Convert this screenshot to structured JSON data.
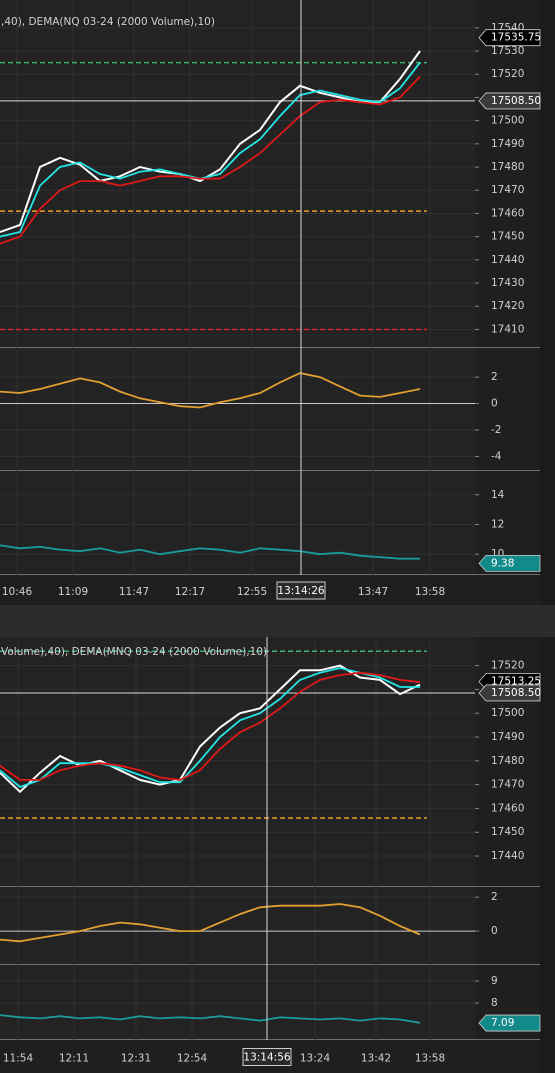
{
  "chart_data": [
    {
      "type": "line",
      "title": ",40), DEMA(NQ 03-24 (2000 Volume),10)",
      "x": [
        0,
        1,
        2,
        3,
        4,
        5,
        6,
        7,
        8,
        9,
        10,
        11,
        12,
        13,
        14,
        15,
        16,
        17,
        18,
        19,
        20,
        21
      ],
      "xlim": [
        0,
        23.75
      ],
      "xticks": [
        {
          "value": 0.85,
          "label": "10:46"
        },
        {
          "value": 3.65,
          "label": "11:09"
        },
        {
          "value": 6.7,
          "label": "11:47"
        },
        {
          "value": 9.5,
          "label": "12:17"
        },
        {
          "value": 12.6,
          "label": "12:55"
        },
        {
          "value": 18.65,
          "label": "13:47"
        },
        {
          "value": 21.5,
          "label": "13:58"
        }
      ],
      "crosshair": {
        "value": 15.05,
        "label": "13:14:26"
      },
      "panels": [
        {
          "ylim": [
            17402,
            17552
          ],
          "yticks": [
            17410,
            17420,
            17430,
            17440,
            17450,
            17460,
            17470,
            17480,
            17490,
            17500,
            17510,
            17520,
            17530,
            17540
          ],
          "series": [
            {
              "color": "#ffffff",
              "values": [
                17452,
                17455,
                17480,
                17484,
                17481,
                17474,
                17476,
                17480,
                17478,
                17477,
                17474,
                17479,
                17490,
                17496,
                17508,
                17515,
                17512,
                17510,
                17508,
                17508,
                17518,
                17530
              ]
            },
            {
              "color": "#22e5e5",
              "values": [
                17450,
                17452,
                17472,
                17480,
                17482,
                17477,
                17475,
                17478,
                17479,
                17477,
                17475,
                17477,
                17486,
                17492,
                17502,
                17511,
                17513,
                17511,
                17509,
                17508,
                17514,
                17525
              ]
            },
            {
              "color": "#e01818",
              "values": [
                17447,
                17450,
                17462,
                17470,
                17474,
                17474,
                17472,
                17474,
                17476,
                17476,
                17475,
                17475,
                17480,
                17486,
                17494,
                17502,
                17508,
                17509,
                17508,
                17507,
                17510,
                17519
              ]
            }
          ],
          "levels": [
            {
              "value": 17525,
              "color": "#3cb371",
              "dashed": true
            },
            {
              "value": 17461,
              "color": "#f0a020",
              "dashed": true
            },
            {
              "value": 17410,
              "color": "#e02020",
              "dashed": true
            },
            {
              "value": 17508.5,
              "color": "#d8d8d8",
              "dashed": false
            }
          ],
          "price_labels": [
            {
              "value": 17535.75,
              "label": "17535.75",
              "color": "#000000"
            },
            {
              "value": 17508.5,
              "label": "17508.50",
              "color": "#3a3a3a"
            }
          ]
        },
        {
          "ylim": [
            -5.1,
            4.2
          ],
          "yticks": [
            -4,
            -2,
            0,
            2
          ],
          "series": [
            {
              "color": "#e0a030",
              "values": [
                0.9,
                0.8,
                1.1,
                1.5,
                1.9,
                1.6,
                0.9,
                0.4,
                0.1,
                -0.2,
                -0.3,
                0.1,
                0.4,
                0.8,
                1.6,
                2.3,
                2.0,
                1.3,
                0.6,
                0.5,
                0.8,
                1.1
              ]
            }
          ],
          "levels": [
            {
              "value": 0,
              "color": "#c8c8c8",
              "dashed": false
            }
          ],
          "price_labels": []
        },
        {
          "ylim": [
            8.6,
            15.6
          ],
          "yticks": [
            10,
            12,
            14
          ],
          "series": [
            {
              "color": "#1a9a9a",
              "values": [
                10.6,
                10.4,
                10.5,
                10.3,
                10.2,
                10.4,
                10.1,
                10.3,
                10.0,
                10.2,
                10.4,
                10.3,
                10.1,
                10.4,
                10.3,
                10.2,
                10.0,
                10.1,
                9.9,
                9.8,
                9.7,
                9.7
              ]
            }
          ],
          "levels": [],
          "price_labels": [
            {
              "value": 9.38,
              "label": "9.38",
              "color": "#138a8a"
            }
          ]
        }
      ]
    },
    {
      "type": "line",
      "title": "Volume),40), DEMA(MNQ 03-24 (2000 Volume),10)",
      "x": [
        0,
        1,
        2,
        3,
        4,
        5,
        6,
        7,
        8,
        9,
        10,
        11,
        12,
        13,
        14,
        15,
        16,
        17,
        18,
        19,
        20,
        21
      ],
      "xlim": [
        0,
        23.75
      ],
      "xticks": [
        {
          "value": 0.9,
          "label": "11:54"
        },
        {
          "value": 3.7,
          "label": "12:11"
        },
        {
          "value": 6.8,
          "label": "12:31"
        },
        {
          "value": 9.6,
          "label": "12:54"
        },
        {
          "value": 15.75,
          "label": "13:24"
        },
        {
          "value": 18.8,
          "label": "13:42"
        },
        {
          "value": 21.5,
          "label": "13:58"
        }
      ],
      "crosshair": {
        "value": 13.35,
        "label": "13:14:56"
      },
      "panels": [
        {
          "ylim": [
            17427,
            17532
          ],
          "yticks": [
            17440,
            17450,
            17460,
            17470,
            17480,
            17490,
            17500,
            17510,
            17520
          ],
          "series": [
            {
              "color": "#ffffff",
              "values": [
                17475,
                17467,
                17475,
                17482,
                17478,
                17480,
                17476,
                17472,
                17470,
                17472,
                17486,
                17494,
                17500,
                17502,
                17510,
                17518,
                17518,
                17520,
                17515,
                17514,
                17508,
                17512
              ]
            },
            {
              "color": "#22e5e5",
              "values": [
                17476,
                17469,
                17472,
                17479,
                17479,
                17479,
                17477,
                17474,
                17471,
                17471,
                17480,
                17490,
                17497,
                17500,
                17506,
                17514,
                17517,
                17519,
                17517,
                17515,
                17511,
                17511
              ]
            },
            {
              "color": "#e01818",
              "values": [
                17478,
                17472,
                17472,
                17476,
                17478,
                17479,
                17478,
                17476,
                17473,
                17472,
                17476,
                17485,
                17492,
                17496,
                17502,
                17509,
                17514,
                17516,
                17517,
                17516,
                17514,
                17513
              ]
            }
          ],
          "levels": [
            {
              "value": 17526,
              "color": "#3cb371",
              "dashed": true
            },
            {
              "value": 17456,
              "color": "#f0a020",
              "dashed": true
            },
            {
              "value": 17508.5,
              "color": "#d8d8d8",
              "dashed": false
            }
          ],
          "price_labels": [
            {
              "value": 17513.25,
              "label": "17513.25",
              "color": "#000000"
            },
            {
              "value": 17508.5,
              "label": "17508.50",
              "color": "#3a3a3a"
            }
          ]
        },
        {
          "ylim": [
            -2.0,
            2.6
          ],
          "yticks": [
            0,
            2
          ],
          "series": [
            {
              "color": "#e0a030",
              "values": [
                -0.5,
                -0.6,
                -0.4,
                -0.2,
                0,
                0.3,
                0.5,
                0.4,
                0.2,
                0,
                0,
                0.5,
                1.0,
                1.4,
                1.5,
                1.5,
                1.5,
                1.6,
                1.4,
                0.9,
                0.3,
                -0.2
              ]
            }
          ],
          "levels": [
            {
              "value": 0,
              "color": "#c8c8c8",
              "dashed": false
            }
          ],
          "price_labels": []
        },
        {
          "ylim": [
            6.32,
            9.73
          ],
          "yticks": [
            8,
            9
          ],
          "series": [
            {
              "color": "#1a9a9a",
              "values": [
                7.45,
                7.35,
                7.3,
                7.4,
                7.3,
                7.35,
                7.25,
                7.4,
                7.3,
                7.35,
                7.3,
                7.4,
                7.3,
                7.2,
                7.35,
                7.3,
                7.25,
                7.3,
                7.2,
                7.3,
                7.25,
                7.1
              ]
            }
          ],
          "levels": [],
          "price_labels": [
            {
              "value": 7.09,
              "label": "7.09",
              "color": "#138a8a"
            }
          ]
        }
      ]
    }
  ]
}
